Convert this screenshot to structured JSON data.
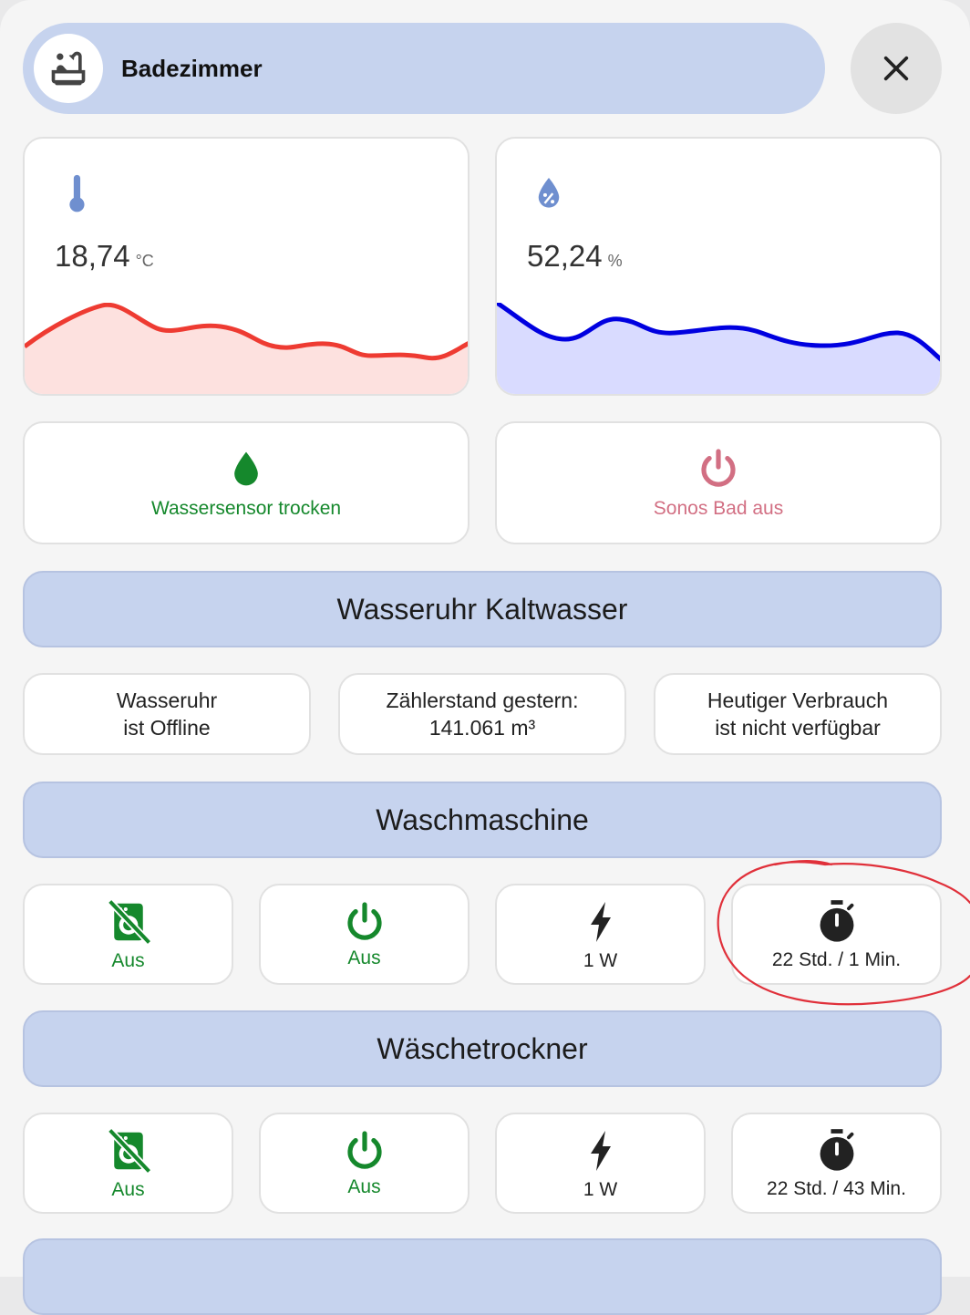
{
  "header": {
    "title": "Badezimmer"
  },
  "sensors": {
    "temperature": {
      "value": "18,74",
      "unit": "°C",
      "line_color": "#ee3b32",
      "fill_color": "#fde1df"
    },
    "humidity": {
      "value": "52,24",
      "unit": "%",
      "line_color": "#0000e0",
      "fill_color": "#d9dbff"
    }
  },
  "tiles": {
    "water_sensor": {
      "label": "Wassersensor trocken",
      "color": "#15882c"
    },
    "sonos": {
      "label": "Sonos Bad aus",
      "color": "#d26f83"
    }
  },
  "sections": {
    "water_meter": "Wasseruhr Kaltwasser",
    "washer": "Waschmaschine",
    "dryer": "Wäschetrockner"
  },
  "water_meter": {
    "status": [
      "Wasseruhr",
      "ist Offline"
    ],
    "yesterday": [
      "Zählerstand gestern:",
      "141.061 m³"
    ],
    "today": [
      "Heutiger Verbrauch",
      "ist nicht verfügbar"
    ]
  },
  "washer": {
    "tiles": [
      {
        "icon": "washing-machine-off-icon",
        "label": "Aus"
      },
      {
        "icon": "power-icon",
        "label": "Aus"
      },
      {
        "icon": "lightning-bolt-icon",
        "label": "1 W"
      },
      {
        "icon": "timer-icon",
        "label": "22 Std. / 1 Min."
      }
    ]
  },
  "dryer": {
    "tiles": [
      {
        "icon": "washing-machine-off-icon",
        "label": "Aus"
      },
      {
        "icon": "power-icon",
        "label": "Aus"
      },
      {
        "icon": "lightning-bolt-icon",
        "label": "1 W"
      },
      {
        "icon": "timer-icon",
        "label": "22 Std. / 43 Min."
      }
    ]
  },
  "annotation": {
    "color": "#e0303a"
  }
}
